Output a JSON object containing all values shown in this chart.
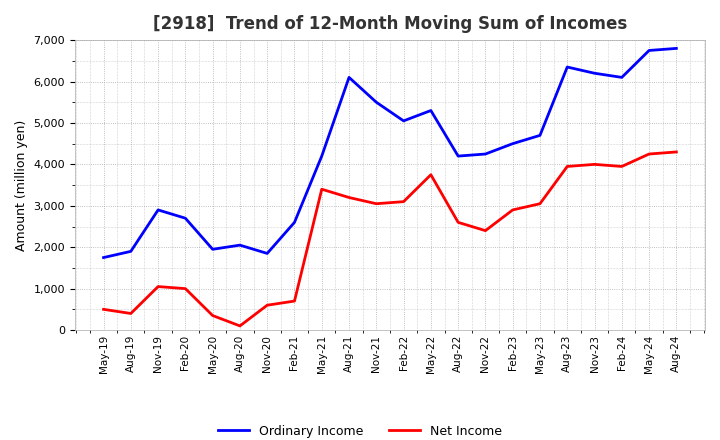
{
  "title": "[2918]  Trend of 12-Month Moving Sum of Incomes",
  "ylabel": "Amount (million yen)",
  "ylim": [
    0,
    7000
  ],
  "yticks": [
    0,
    1000,
    2000,
    3000,
    4000,
    5000,
    6000,
    7000
  ],
  "x_labels": [
    "May-19",
    "Aug-19",
    "Nov-19",
    "Feb-20",
    "May-20",
    "Aug-20",
    "Nov-20",
    "Feb-21",
    "May-21",
    "Aug-21",
    "Nov-21",
    "Feb-22",
    "May-22",
    "Aug-22",
    "Nov-22",
    "Feb-23",
    "May-23",
    "Aug-23",
    "Nov-23",
    "Feb-24",
    "May-24",
    "Aug-24"
  ],
  "ordinary_income": [
    1750,
    1900,
    2900,
    2700,
    1950,
    2050,
    1850,
    2600,
    4200,
    6100,
    5500,
    5050,
    5300,
    4200,
    4250,
    4500,
    4700,
    6350,
    6200,
    6100,
    6750,
    6800
  ],
  "net_income": [
    500,
    400,
    1050,
    1000,
    350,
    100,
    600,
    700,
    3400,
    3200,
    3050,
    3100,
    3750,
    2600,
    2400,
    2900,
    3050,
    3950,
    4000,
    3950,
    4250,
    4300
  ],
  "ordinary_color": "#0000ff",
  "net_color": "#ff0000",
  "background_color": "#ffffff",
  "grid_color": "#aaaaaa",
  "title_fontsize": 12,
  "legend_labels": [
    "Ordinary Income",
    "Net Income"
  ]
}
